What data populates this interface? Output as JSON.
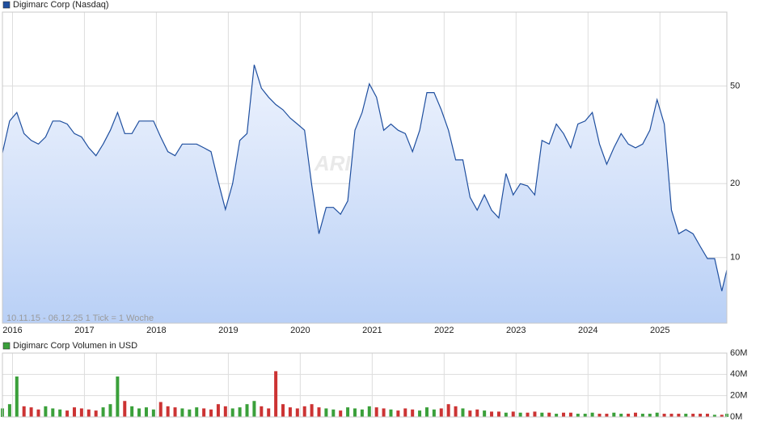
{
  "chart_data": [
    {
      "type": "area",
      "x": [
        2015.86,
        2015.96,
        2016.06,
        2016.16,
        2016.26,
        2016.36,
        2016.46,
        2016.56,
        2016.66,
        2016.76,
        2016.86,
        2016.96,
        2017.06,
        2017.16,
        2017.26,
        2017.36,
        2017.46,
        2017.56,
        2017.66,
        2017.76,
        2017.86,
        2017.96,
        2018.06,
        2018.16,
        2018.26,
        2018.36,
        2018.46,
        2018.56,
        2018.66,
        2018.76,
        2018.86,
        2018.96,
        2019.06,
        2019.16,
        2019.26,
        2019.36,
        2019.46,
        2019.56,
        2019.66,
        2019.76,
        2019.86,
        2019.96,
        2020.06,
        2020.16,
        2020.26,
        2020.36,
        2020.46,
        2020.56,
        2020.66,
        2020.76,
        2020.86,
        2020.96,
        2021.06,
        2021.16,
        2021.26,
        2021.36,
        2021.46,
        2021.56,
        2021.66,
        2021.76,
        2021.86,
        2021.96,
        2022.06,
        2022.16,
        2022.26,
        2022.36,
        2022.46,
        2022.56,
        2022.66,
        2022.76,
        2022.86,
        2022.96,
        2023.06,
        2023.16,
        2023.26,
        2023.36,
        2023.46,
        2023.56,
        2023.66,
        2023.76,
        2023.86,
        2023.96,
        2024.06,
        2024.16,
        2024.26,
        2024.36,
        2024.46,
        2024.56,
        2024.66,
        2024.76,
        2024.86,
        2024.96,
        2025.06,
        2025.16,
        2025.26,
        2025.36,
        2025.46,
        2025.56,
        2025.66,
        2025.76,
        2025.86,
        2025.93
      ],
      "series": [
        {
          "name": "Digimarc Corp (Nasdaq)",
          "color": "#1f4f9f",
          "values": [
            26.7,
            36,
            39,
            32,
            30,
            29,
            31,
            36,
            36,
            35,
            32,
            31,
            28,
            26,
            29,
            33,
            39,
            32,
            32,
            36,
            36,
            36,
            31,
            27,
            26,
            29,
            29,
            29,
            28,
            27,
            20.4,
            15.7,
            20,
            30,
            32,
            61,
            49,
            45,
            42,
            40,
            37,
            35,
            33,
            19.7,
            12.5,
            16,
            16,
            15,
            17,
            33,
            39,
            51,
            45,
            33,
            35,
            33,
            32,
            27,
            33,
            47,
            47,
            40,
            33,
            25,
            25,
            17.6,
            15.6,
            18,
            15.6,
            14.5,
            22,
            18,
            20,
            19.6,
            18,
            30,
            29,
            35,
            32,
            28,
            35,
            36,
            39,
            29,
            24,
            28,
            32,
            29,
            28,
            29,
            33,
            44,
            35,
            15.6,
            12.5,
            13,
            12.5,
            11.1,
            9.9,
            9.9,
            7.3,
            8.9
          ]
        }
      ],
      "xlim": [
        2015.86,
        2025.93
      ],
      "xticks": [
        2016,
        2017,
        2018,
        2019,
        2020,
        2021,
        2022,
        2023,
        2024,
        2025
      ],
      "ylim": [
        5.4,
        100
      ],
      "yticks": [
        10,
        20,
        50
      ],
      "log_scale": true,
      "grid": true,
      "note": "10.11.15 - 06.12.25   1 Tick = 1 Woche",
      "watermark": "ARIVA.DE"
    },
    {
      "type": "bar",
      "x": [
        2015.86,
        2015.96,
        2016.06,
        2016.16,
        2016.26,
        2016.36,
        2016.46,
        2016.56,
        2016.66,
        2016.76,
        2016.86,
        2016.96,
        2017.06,
        2017.16,
        2017.26,
        2017.36,
        2017.46,
        2017.56,
        2017.66,
        2017.76,
        2017.86,
        2017.96,
        2018.06,
        2018.16,
        2018.26,
        2018.36,
        2018.46,
        2018.56,
        2018.66,
        2018.76,
        2018.86,
        2018.96,
        2019.06,
        2019.16,
        2019.26,
        2019.36,
        2019.46,
        2019.56,
        2019.66,
        2019.76,
        2019.86,
        2019.96,
        2020.06,
        2020.16,
        2020.26,
        2020.36,
        2020.46,
        2020.56,
        2020.66,
        2020.76,
        2020.86,
        2020.96,
        2021.06,
        2021.16,
        2021.26,
        2021.36,
        2021.46,
        2021.56,
        2021.66,
        2021.76,
        2021.86,
        2021.96,
        2022.06,
        2022.16,
        2022.26,
        2022.36,
        2022.46,
        2022.56,
        2022.66,
        2022.76,
        2022.86,
        2022.96,
        2023.06,
        2023.16,
        2023.26,
        2023.36,
        2023.46,
        2023.56,
        2023.66,
        2023.76,
        2023.86,
        2023.96,
        2024.06,
        2024.16,
        2024.26,
        2024.36,
        2024.46,
        2024.56,
        2024.66,
        2024.76,
        2024.86,
        2024.96,
        2025.06,
        2025.16,
        2025.26,
        2025.36,
        2025.46,
        2025.56,
        2025.66,
        2025.76,
        2025.86,
        2025.93
      ],
      "series": [
        {
          "name": "Digimarc Corp Volumen in USD",
          "color": "#3aa03a",
          "down_color": "#cc3333",
          "values": [
            8000000,
            12000000,
            38000000,
            10000000,
            9000000,
            7000000,
            10000000,
            8000000,
            7000000,
            6000000,
            9000000,
            8000000,
            7000000,
            6000000,
            9000000,
            12000000,
            38000000,
            15000000,
            10000000,
            8000000,
            9000000,
            7000000,
            14000000,
            10000000,
            9000000,
            8000000,
            7000000,
            9000000,
            8000000,
            7000000,
            12000000,
            10000000,
            8000000,
            9000000,
            12000000,
            15000000,
            10000000,
            8000000,
            43000000,
            12000000,
            9000000,
            8000000,
            10000000,
            12000000,
            9000000,
            8000000,
            7000000,
            6000000,
            9000000,
            8000000,
            7000000,
            10000000,
            9000000,
            8000000,
            7000000,
            6000000,
            8000000,
            7000000,
            6000000,
            9000000,
            7000000,
            8000000,
            12000000,
            10000000,
            8000000,
            6000000,
            7000000,
            6000000,
            5000000,
            5000000,
            4000000,
            5000000,
            4000000,
            4000000,
            5000000,
            4000000,
            4000000,
            3000000,
            4000000,
            4000000,
            3000000,
            3000000,
            4000000,
            3000000,
            3000000,
            4000000,
            3000000,
            3000000,
            4000000,
            3000000,
            3000000,
            4000000,
            3000000,
            3000000,
            3000000,
            3000000,
            3000000,
            3000000,
            3000000,
            2000000,
            2000000,
            3000000
          ]
        }
      ],
      "xlim": [
        2015.86,
        2025.93
      ],
      "xticks": [
        2016,
        2017,
        2018,
        2019,
        2020,
        2021,
        2022,
        2023,
        2024,
        2025
      ],
      "ylim": [
        0,
        60000000
      ],
      "yticks": [
        {
          "value": 0,
          "label": "0M"
        },
        {
          "value": 20000000,
          "label": "20M"
        },
        {
          "value": 40000000,
          "label": "40M"
        },
        {
          "value": 60000000,
          "label": "60M"
        }
      ],
      "grid": true
    }
  ]
}
